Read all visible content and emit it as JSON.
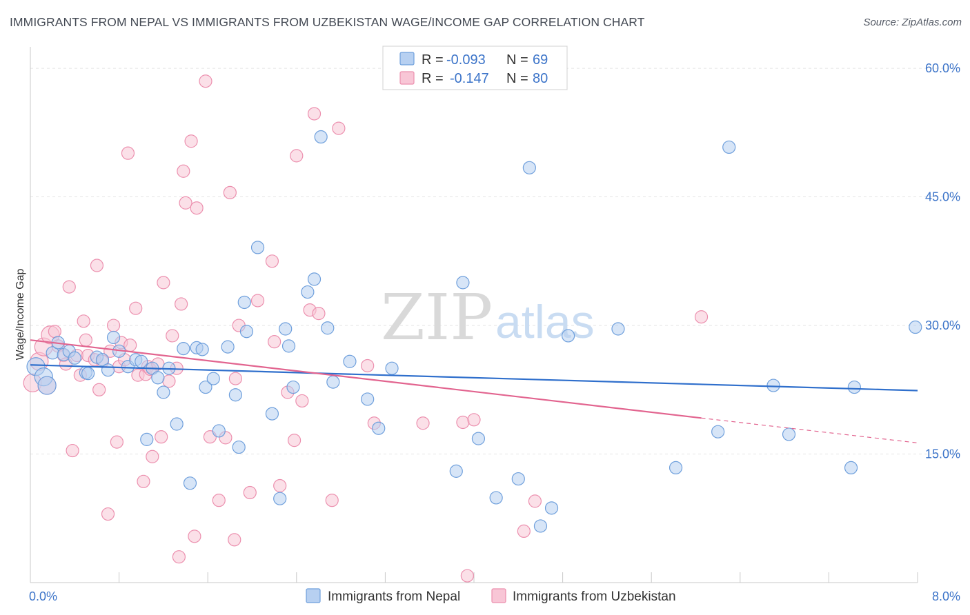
{
  "header": {
    "title": "IMMIGRANTS FROM NEPAL VS IMMIGRANTS FROM UZBEKISTAN WAGE/INCOME GAP CORRELATION CHART",
    "source": "Source: ZipAtlas.com"
  },
  "watermark": {
    "zip": "ZIP",
    "atlas": "atlas"
  },
  "colors": {
    "nepal_fill": "#b7d0f1",
    "nepal_stroke": "#6e9fdc",
    "nepal_line": "#2f6fcc",
    "uzbek_fill": "#f8c6d6",
    "uzbek_stroke": "#ec8fae",
    "uzbek_line": "#e2648f",
    "axis_text": "#3c74c9",
    "grid": "#e3e3e3"
  },
  "legend": {
    "rows": [
      {
        "r_label": "R =",
        "r_value": "-0.093",
        "n_label": "N =",
        "n_value": "69"
      },
      {
        "r_label": "R =",
        "r_value": "-0.147",
        "n_label": "N =",
        "n_value": "80"
      }
    ]
  },
  "bottom_legend": {
    "items": [
      "Immigrants from Nepal",
      "Immigrants from Uzbekistan"
    ]
  },
  "chart_data": {
    "type": "scatter",
    "title": "IMMIGRANTS FROM NEPAL VS IMMIGRANTS FROM UZBEKISTAN WAGE/INCOME GAP CORRELATION CHART",
    "xlabel": "",
    "ylabel": "Wage/Income Gap",
    "xlim": [
      0,
      8
    ],
    "ylim": [
      0,
      62.5
    ],
    "x_tick_labels": [
      {
        "value": 0,
        "label": "0.0%"
      },
      {
        "value": 8,
        "label": "8.0%"
      }
    ],
    "y_tick_labels": [
      {
        "value": 15,
        "label": "15.0%"
      },
      {
        "value": 30,
        "label": "30.0%"
      },
      {
        "value": 45,
        "label": "45.0%"
      },
      {
        "value": 60,
        "label": "60.0%"
      }
    ],
    "grid": true,
    "series": [
      {
        "name": "Immigrants from Nepal",
        "R": -0.093,
        "N": 69,
        "trend": {
          "x0": 0,
          "y0": 25.4,
          "x1": 8,
          "y1": 22.4
        },
        "points": [
          [
            0.05,
            25.2
          ],
          [
            0.12,
            24.0
          ],
          [
            0.15,
            23.0
          ],
          [
            0.2,
            26.8
          ],
          [
            0.25,
            28.0
          ],
          [
            0.3,
            26.6
          ],
          [
            0.35,
            27.0
          ],
          [
            0.4,
            26.2
          ],
          [
            0.5,
            24.5
          ],
          [
            0.52,
            24.4
          ],
          [
            0.6,
            26.3
          ],
          [
            0.65,
            26.0
          ],
          [
            0.7,
            24.8
          ],
          [
            0.75,
            28.6
          ],
          [
            0.8,
            27.0
          ],
          [
            0.88,
            25.2
          ],
          [
            0.95,
            26.0
          ],
          [
            1.0,
            25.8
          ],
          [
            1.05,
            16.7
          ],
          [
            1.1,
            25.0
          ],
          [
            1.15,
            23.9
          ],
          [
            1.2,
            22.2
          ],
          [
            1.25,
            25.0
          ],
          [
            1.32,
            18.5
          ],
          [
            1.38,
            27.3
          ],
          [
            1.44,
            11.6
          ],
          [
            1.5,
            27.4
          ],
          [
            1.55,
            27.2
          ],
          [
            1.58,
            22.8
          ],
          [
            1.65,
            23.8
          ],
          [
            1.7,
            17.7
          ],
          [
            1.78,
            27.5
          ],
          [
            1.85,
            21.9
          ],
          [
            1.88,
            15.8
          ],
          [
            1.93,
            32.7
          ],
          [
            1.95,
            29.3
          ],
          [
            2.05,
            39.1
          ],
          [
            2.18,
            19.7
          ],
          [
            2.25,
            9.8
          ],
          [
            2.3,
            29.6
          ],
          [
            2.33,
            27.6
          ],
          [
            2.37,
            22.8
          ],
          [
            2.5,
            33.9
          ],
          [
            2.56,
            35.4
          ],
          [
            2.62,
            52.0
          ],
          [
            2.68,
            29.7
          ],
          [
            2.73,
            23.4
          ],
          [
            2.88,
            25.8
          ],
          [
            3.04,
            21.4
          ],
          [
            3.14,
            18.0
          ],
          [
            3.26,
            25.0
          ],
          [
            3.84,
            13.0
          ],
          [
            3.9,
            35.0
          ],
          [
            4.04,
            16.8
          ],
          [
            4.2,
            9.9
          ],
          [
            4.4,
            12.1
          ],
          [
            4.5,
            48.4
          ],
          [
            4.6,
            6.6
          ],
          [
            4.7,
            8.7
          ],
          [
            4.85,
            28.8
          ],
          [
            5.3,
            29.6
          ],
          [
            5.82,
            13.4
          ],
          [
            6.2,
            17.6
          ],
          [
            6.3,
            50.8
          ],
          [
            6.7,
            23.0
          ],
          [
            6.84,
            17.3
          ],
          [
            7.4,
            13.4
          ],
          [
            7.43,
            22.8
          ],
          [
            7.98,
            29.8
          ]
        ]
      },
      {
        "name": "Immigrants from Uzbekistan",
        "R": -0.147,
        "N": 80,
        "trend": {
          "x0": 0,
          "y0": 28.3,
          "x1": 6.05,
          "y1": 19.2
        },
        "trend_dashed": {
          "x0": 6.05,
          "y0": 19.2,
          "x1": 8,
          "y1": 16.3
        },
        "points": [
          [
            0.02,
            23.3
          ],
          [
            0.08,
            25.8
          ],
          [
            0.12,
            27.5
          ],
          [
            0.15,
            23.0
          ],
          [
            0.18,
            28.9
          ],
          [
            0.22,
            29.3
          ],
          [
            0.25,
            27.6
          ],
          [
            0.3,
            26.5
          ],
          [
            0.32,
            25.5
          ],
          [
            0.35,
            34.5
          ],
          [
            0.38,
            15.4
          ],
          [
            0.42,
            26.5
          ],
          [
            0.45,
            24.2
          ],
          [
            0.48,
            30.5
          ],
          [
            0.5,
            28.3
          ],
          [
            0.52,
            26.5
          ],
          [
            0.58,
            26.0
          ],
          [
            0.6,
            37.0
          ],
          [
            0.62,
            22.5
          ],
          [
            0.65,
            25.8
          ],
          [
            0.7,
            8.0
          ],
          [
            0.72,
            27.0
          ],
          [
            0.75,
            30.0
          ],
          [
            0.78,
            16.4
          ],
          [
            0.8,
            25.2
          ],
          [
            0.82,
            28.0
          ],
          [
            0.85,
            26.0
          ],
          [
            0.88,
            50.1
          ],
          [
            0.9,
            27.7
          ],
          [
            0.95,
            32.0
          ],
          [
            0.97,
            24.2
          ],
          [
            1.02,
            11.8
          ],
          [
            1.04,
            24.3
          ],
          [
            1.06,
            25.2
          ],
          [
            1.08,
            24.9
          ],
          [
            1.1,
            14.7
          ],
          [
            1.15,
            25.5
          ],
          [
            1.18,
            17.0
          ],
          [
            1.2,
            35.0
          ],
          [
            1.25,
            23.5
          ],
          [
            1.28,
            28.8
          ],
          [
            1.32,
            25.0
          ],
          [
            1.34,
            3.0
          ],
          [
            1.36,
            32.5
          ],
          [
            1.38,
            48.0
          ],
          [
            1.4,
            44.3
          ],
          [
            1.45,
            51.5
          ],
          [
            1.48,
            5.4
          ],
          [
            1.5,
            43.7
          ],
          [
            1.58,
            58.5
          ],
          [
            1.62,
            17.0
          ],
          [
            1.7,
            9.6
          ],
          [
            1.76,
            16.9
          ],
          [
            1.8,
            45.5
          ],
          [
            1.84,
            5.0
          ],
          [
            1.85,
            23.8
          ],
          [
            1.88,
            30.0
          ],
          [
            1.98,
            10.5
          ],
          [
            2.05,
            32.9
          ],
          [
            2.18,
            37.5
          ],
          [
            2.2,
            28.1
          ],
          [
            2.25,
            11.3
          ],
          [
            2.32,
            22.2
          ],
          [
            2.38,
            16.6
          ],
          [
            2.4,
            49.8
          ],
          [
            2.45,
            21.2
          ],
          [
            2.52,
            31.8
          ],
          [
            2.56,
            54.7
          ],
          [
            2.6,
            31.4
          ],
          [
            2.72,
            9.6
          ],
          [
            2.78,
            53.0
          ],
          [
            3.04,
            25.3
          ],
          [
            3.1,
            18.6
          ],
          [
            3.54,
            18.6
          ],
          [
            3.9,
            18.7
          ],
          [
            4.0,
            19.0
          ],
          [
            3.94,
            0.8
          ],
          [
            4.45,
            6.0
          ],
          [
            4.55,
            9.5
          ],
          [
            6.05,
            31.0
          ]
        ]
      }
    ]
  }
}
